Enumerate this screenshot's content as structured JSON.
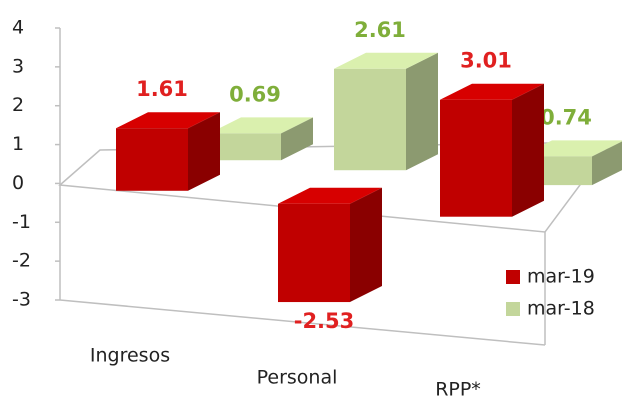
{
  "chart_data": {
    "type": "bar3d",
    "categories": [
      "Ingresos",
      "Personal",
      "RPP*"
    ],
    "series": [
      {
        "name": "mar-19",
        "color": "#c00000",
        "values": [
          1.61,
          -2.53,
          3.01
        ]
      },
      {
        "name": "mar-18",
        "color": "#c3d69b",
        "values": [
          0.69,
          2.61,
          0.74
        ]
      }
    ],
    "ylim": [
      -3,
      4
    ],
    "yticks": [
      -3,
      -2,
      -1,
      0,
      1,
      2,
      3,
      4
    ],
    "legend": "right"
  }
}
